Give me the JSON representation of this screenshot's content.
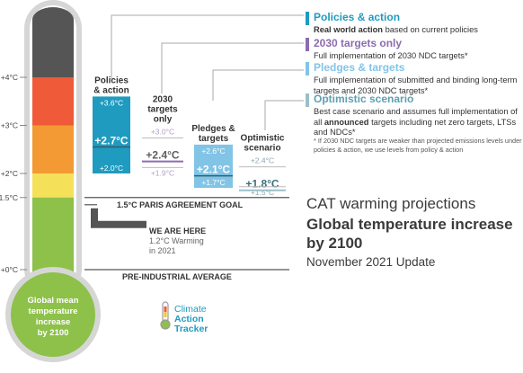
{
  "headline": {
    "title": "CAT warming projections",
    "subtitle": "Global temperature increase by 2100",
    "date": "November 2021 Update"
  },
  "legend": [
    {
      "title": "Policies & action",
      "desc_bold": "Real world action",
      "desc": " based on current policies",
      "color": "#1e9bbf"
    },
    {
      "title": "2030 targets only",
      "desc_bold": "",
      "desc": "Full implementation of 2030 NDC targets*",
      "color": "#8c6bb0"
    },
    {
      "title": "Pledges & targets",
      "desc_bold": "",
      "desc": "Full implementation of submitted and binding long-term targets and 2030 NDC targets*",
      "color": "#82c4e6"
    },
    {
      "title": "Optimistic scenario",
      "desc_pre": "Best case scenario and assumes full implementation of all ",
      "desc_bold": "announced",
      "desc": " targets including net zero targets, LTSs and NDCs*",
      "color": "#9bbfc9"
    }
  ],
  "footnote": "* If 2030 NDC targets are weaker than projected emissions levels under policies & action, we use levels from policy & action",
  "thermometer": {
    "label_lines": [
      "Global mean",
      "temperature",
      "increase",
      "by 2100"
    ],
    "ticks": [
      "+4°C",
      "+3°C",
      "+2°C",
      "+1.5°C",
      "+0°C"
    ],
    "band_colors": [
      "#555555",
      "#ef5a38",
      "#f39a34",
      "#f5e05a",
      "#8dc14a"
    ]
  },
  "reference_lines": {
    "paris": "1.5°C PARIS AGREEMENT GOAL",
    "preindustrial": "PRE-INDUSTRIAL AVERAGE",
    "we_are_here": "WE ARE HERE",
    "we_are_here_sub": [
      "1.2°C Warming",
      "in 2021"
    ]
  },
  "logo": {
    "lines": [
      "Climate",
      "Action",
      "Tracker"
    ]
  },
  "chart_data": {
    "type": "bar",
    "title": "CAT warming projections",
    "subtitle": "Global temperature increase by 2100",
    "unit": "°C",
    "ylim": [
      0,
      4.5
    ],
    "yticks": [
      "+4°C",
      "+3°C",
      "+2°C",
      "+1.5°C",
      "+0°C"
    ],
    "reference_lines": [
      {
        "label": "1.5°C PARIS AGREEMENT GOAL",
        "value": 1.5
      },
      {
        "label": "PRE-INDUSTRIAL AVERAGE",
        "value": 0
      }
    ],
    "current_warming": {
      "label": "WE ARE HERE",
      "value": 1.2,
      "year": 2021
    },
    "series": [
      {
        "name_lines": [
          "Policies",
          "& action"
        ],
        "low": 2.0,
        "central": 2.7,
        "high": 3.6,
        "low_label": "+2.0°C",
        "central_label": "+2.7°C",
        "high_label": "+3.6°C",
        "color": "#1e9bbf",
        "filled": true
      },
      {
        "name_lines": [
          "2030",
          "targets",
          "only"
        ],
        "low": 1.9,
        "central": 2.4,
        "high": 3.0,
        "low_label": "+1.9°C",
        "central_label": "+2.4°C",
        "high_label": "+3.0°C",
        "color": "#8c6bb0",
        "filled": false
      },
      {
        "name_lines": [
          "Pledges &",
          "targets"
        ],
        "low": 1.7,
        "central": 2.1,
        "high": 2.6,
        "low_label": "+1.7°C",
        "central_label": "+2.1°C",
        "high_label": "+2.6°C",
        "color": "#82c4e6",
        "filled": true
      },
      {
        "name_lines": [
          "Optimistic",
          "scenario"
        ],
        "low": 1.5,
        "central": 1.8,
        "high": 2.4,
        "low_label": "+1.5°C",
        "central_label": "+1.8°C",
        "high_label": "+2.4°C",
        "color": "#9bbfc9",
        "filled": false
      }
    ]
  }
}
